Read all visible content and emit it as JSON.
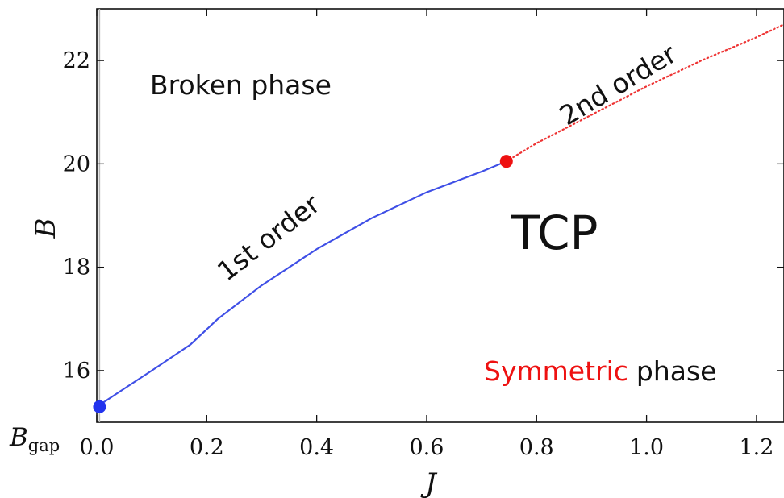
{
  "chart_data": {
    "type": "line",
    "xlabel": "J",
    "ylabel": "B",
    "xlim": [
      0.0,
      1.25
    ],
    "ylim": [
      15.0,
      23.0
    ],
    "grid": false,
    "x_ticks": [
      "0.0",
      "0.2",
      "0.4",
      "0.6",
      "0.8",
      "1.0",
      "1.2"
    ],
    "y_ticks": [
      "16",
      "18",
      "20",
      "22"
    ],
    "bgap_label": {
      "base": "B",
      "sub": "gap"
    },
    "series": [
      {
        "style": "solid",
        "color": "#3f4fe6",
        "x": [
          0.0,
          0.05,
          0.1,
          0.17,
          0.22,
          0.3,
          0.4,
          0.5,
          0.6,
          0.7,
          0.745
        ],
        "y": [
          15.3,
          15.65,
          16.0,
          16.5,
          17.0,
          17.65,
          18.35,
          18.95,
          19.45,
          19.85,
          20.05
        ]
      },
      {
        "style": "dotted",
        "color": "#ee3333",
        "x": [
          0.745,
          0.8,
          0.9,
          1.0,
          1.1,
          1.2,
          1.25
        ],
        "y": [
          20.05,
          20.4,
          20.95,
          21.5,
          22.0,
          22.45,
          22.7
        ]
      }
    ],
    "points": [
      {
        "x": 0.005,
        "y": 15.3,
        "color": "#2233ee"
      },
      {
        "x": 0.745,
        "y": 20.05,
        "color": "#ee1111"
      }
    ],
    "annotations": {
      "broken": "Broken phase",
      "first_order": "1st order",
      "second_order": "2nd order",
      "tcp": "TCP",
      "symmetric_word": "Symmetric",
      "phase_word": "phase"
    },
    "colors": {
      "symmetric": "#ee1111",
      "axis": "#111111",
      "vline": "#b8b8b8"
    }
  }
}
